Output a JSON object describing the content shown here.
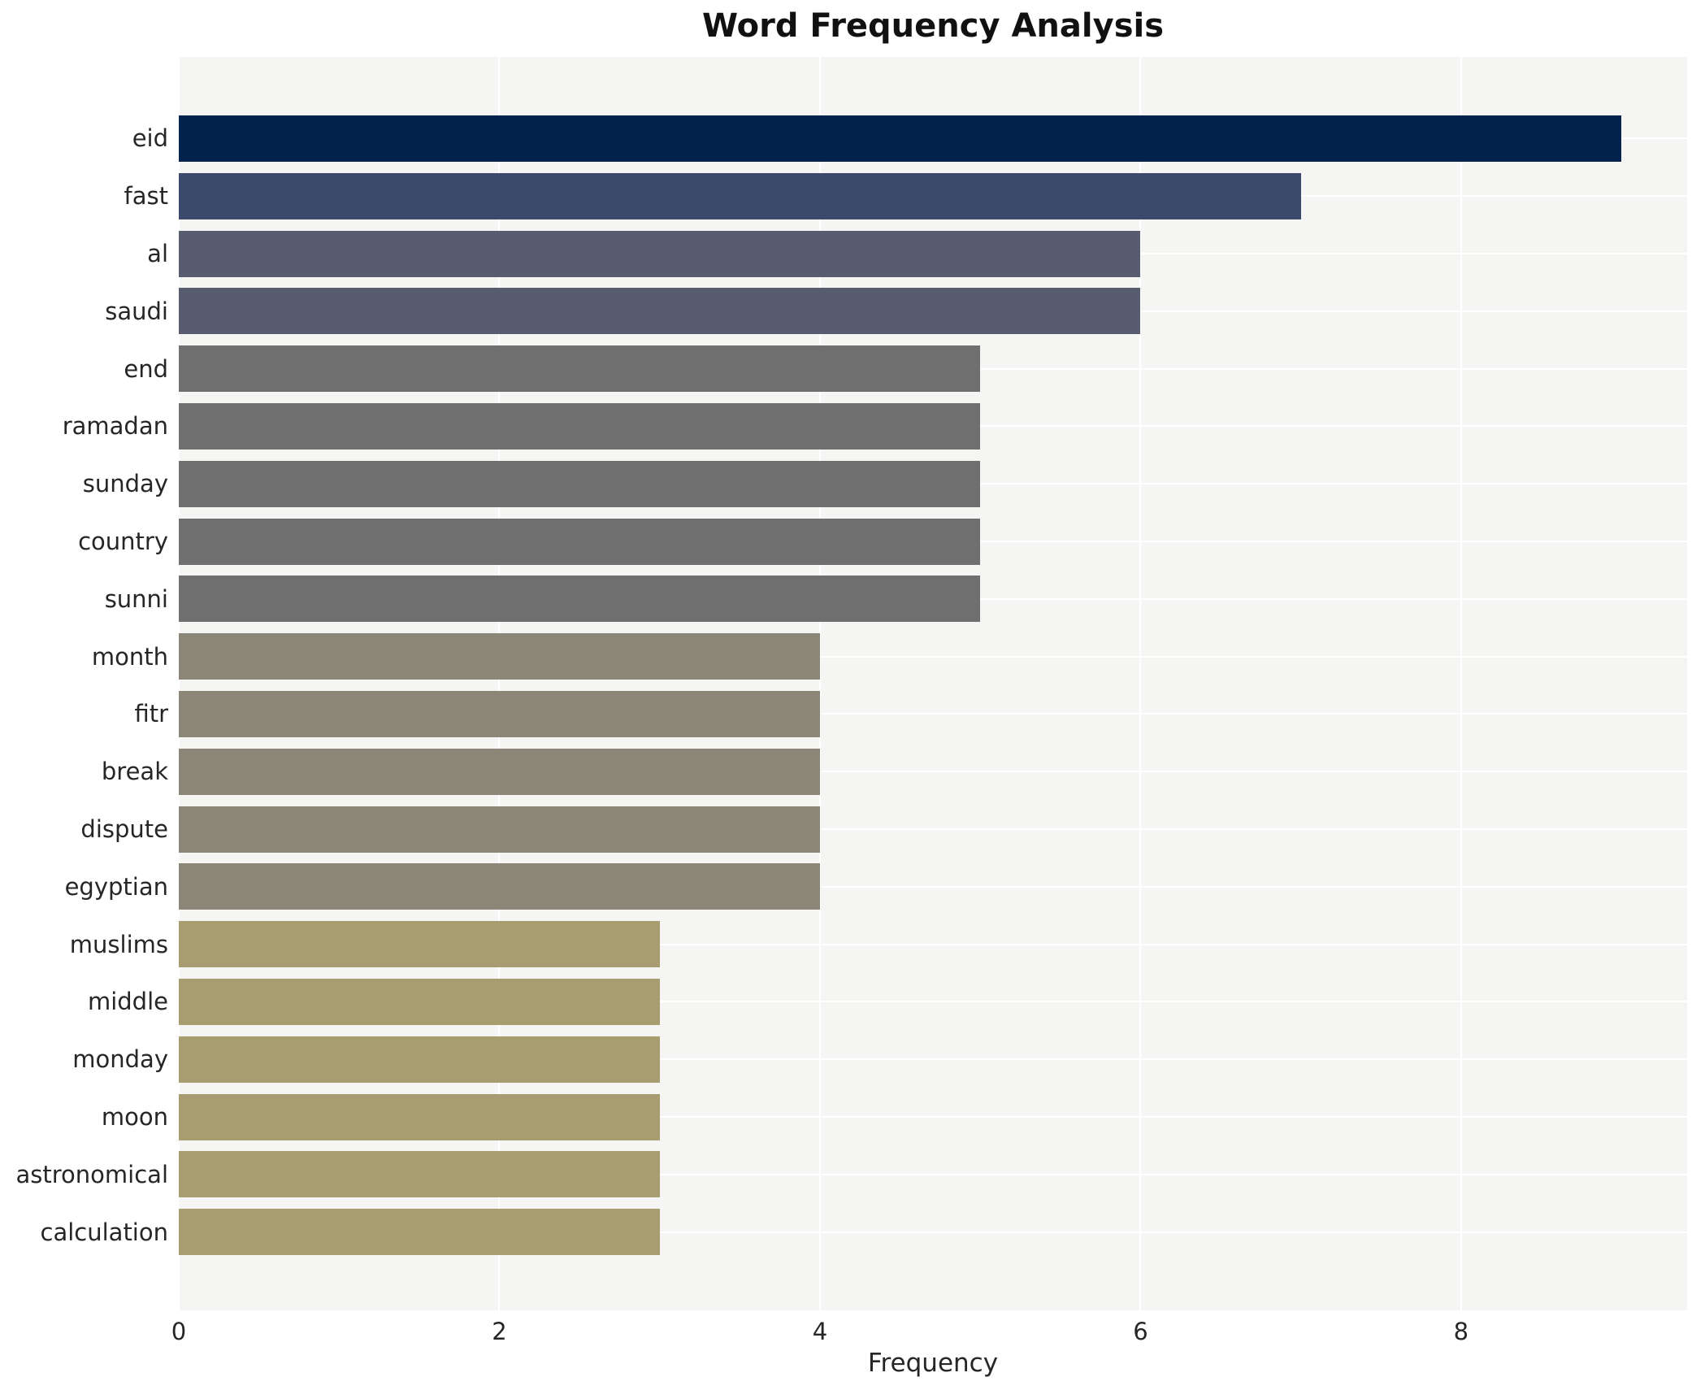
{
  "chart_data": {
    "type": "bar",
    "orientation": "horizontal",
    "title": "Word Frequency Analysis",
    "xlabel": "Frequency",
    "ylabel": "",
    "categories": [
      "eid",
      "fast",
      "al",
      "saudi",
      "end",
      "ramadan",
      "sunday",
      "country",
      "sunni",
      "month",
      "fitr",
      "break",
      "dispute",
      "egyptian",
      "muslims",
      "middle",
      "monday",
      "moon",
      "astronomical",
      "calculation"
    ],
    "values": [
      9,
      7,
      6,
      6,
      5,
      5,
      5,
      5,
      5,
      4,
      4,
      4,
      4,
      4,
      3,
      3,
      3,
      3,
      3,
      3
    ],
    "bar_colors": [
      "#01224d",
      "#3b496c",
      "#575d6e",
      "#575d6e",
      "#6f6f70",
      "#6f6f70",
      "#6f6f70",
      "#6f6f70",
      "#6f6f70",
      "#8b8678",
      "#8b8678",
      "#8b8678",
      "#8b8678",
      "#8b8678",
      "#a89d70",
      "#a89d70",
      "#a89d70",
      "#a89d70",
      "#a89d70",
      "#a89d70"
    ],
    "x_ticks": [
      0,
      2,
      4,
      6,
      8
    ],
    "xlim": [
      0,
      9.41
    ],
    "grid": true,
    "legend": false,
    "plot_background": "#f5f5f4",
    "grid_color": "#ffffff",
    "text_color": "#262626",
    "title_color": "#111111"
  }
}
